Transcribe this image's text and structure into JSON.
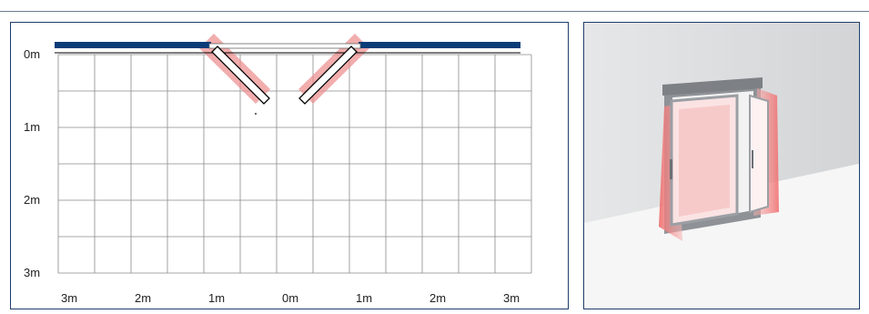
{
  "floor_plan": {
    "y_labels": [
      "0m",
      "1m",
      "2m",
      "3m"
    ],
    "x_labels": [
      "3m",
      "2m",
      "1m",
      "0m",
      "1m",
      "2m",
      "3m"
    ],
    "colors": {
      "wall": "#0a3c78",
      "grid": "#8a8a8a",
      "sensor_field": "#ec8a8a",
      "door_leaf": "#ffffff",
      "door_outline": "#000000"
    }
  },
  "render_view": {
    "colors": {
      "background": "#ececec",
      "wall": "#cfd2d5",
      "frame": "#8e9297",
      "sensor_field": "#f08080"
    }
  }
}
